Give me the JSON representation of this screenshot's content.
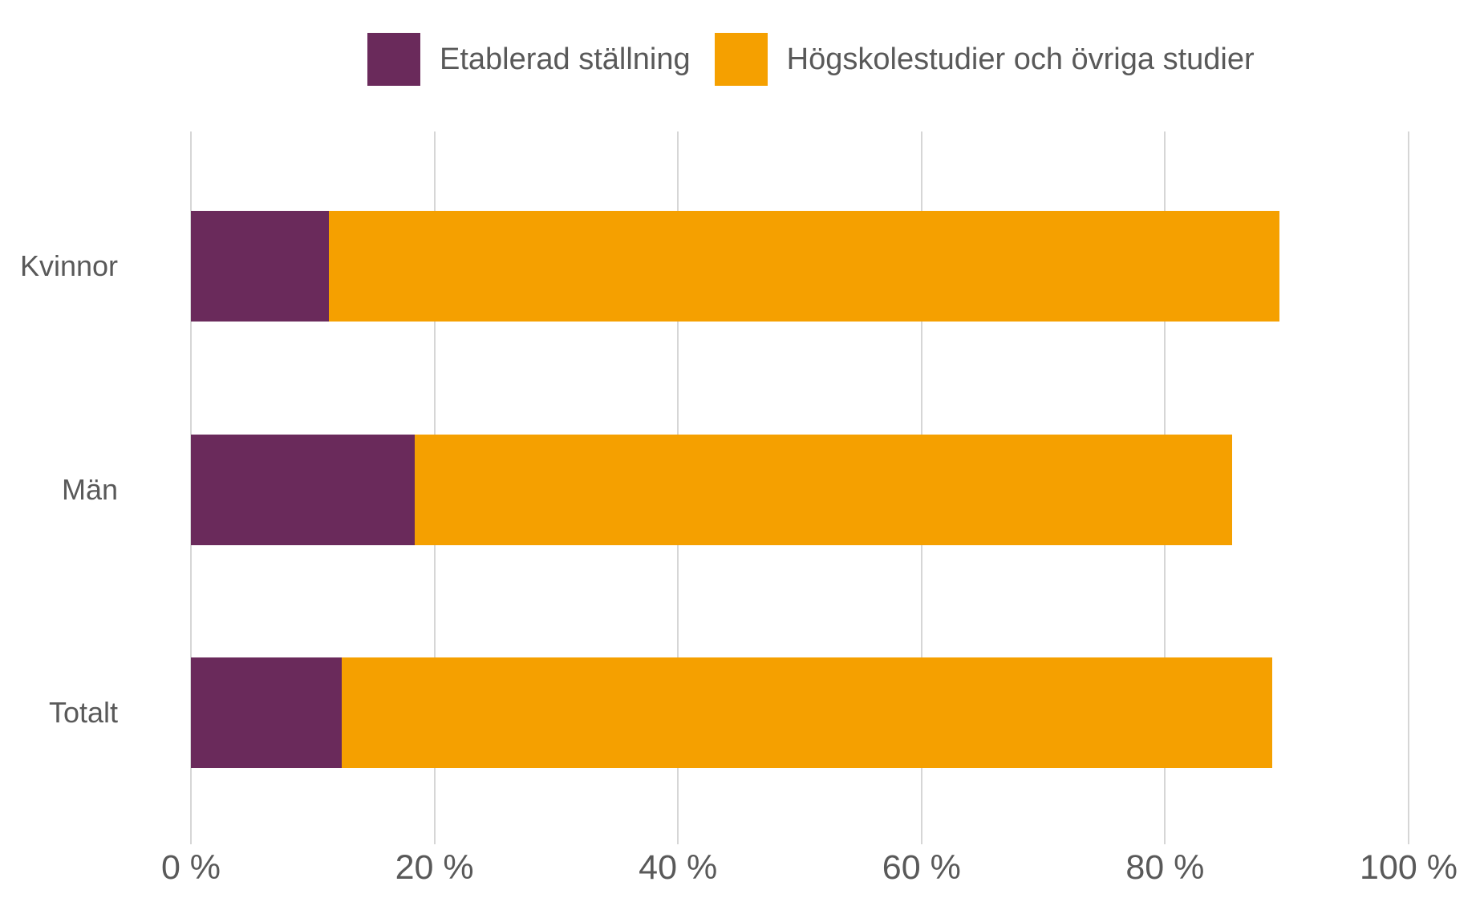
{
  "colors": {
    "background": "#ffffff",
    "series_purple": "#6a2a5b",
    "series_orange": "#f5a000",
    "text_gray": "#595959",
    "gridline_gray": "#d6d6d6"
  },
  "legend": {
    "items": [
      {
        "label": "Etablerad ställning",
        "color": "#6a2a5b"
      },
      {
        "label": "Högskolestudier och övriga studier",
        "color": "#f5a000"
      }
    ]
  },
  "chart_data": {
    "type": "bar",
    "orientation": "horizontal",
    "stacked": true,
    "title": "",
    "xlabel": "",
    "ylabel": "",
    "categories": [
      "Kvinnor",
      "Män",
      "Totalt"
    ],
    "series": [
      {
        "name": "Etablerad ställning",
        "color": "#6a2a5b",
        "values": [
          11.3,
          18.4,
          12.4
        ]
      },
      {
        "name": "Högskolestudier och övriga studier",
        "color": "#f5a000",
        "values": [
          78.1,
          67.1,
          76.4
        ]
      }
    ],
    "stack_totals": [
      89.4,
      85.5,
      88.8
    ],
    "xlim": [
      0,
      100
    ],
    "x_ticks": [
      0,
      20,
      40,
      60,
      80,
      100
    ],
    "x_tick_labels": [
      "0 %",
      "20 %",
      "40 %",
      "60 %",
      "80 %",
      "100 %"
    ],
    "legend_position": "top",
    "grid": "vertical-only"
  }
}
